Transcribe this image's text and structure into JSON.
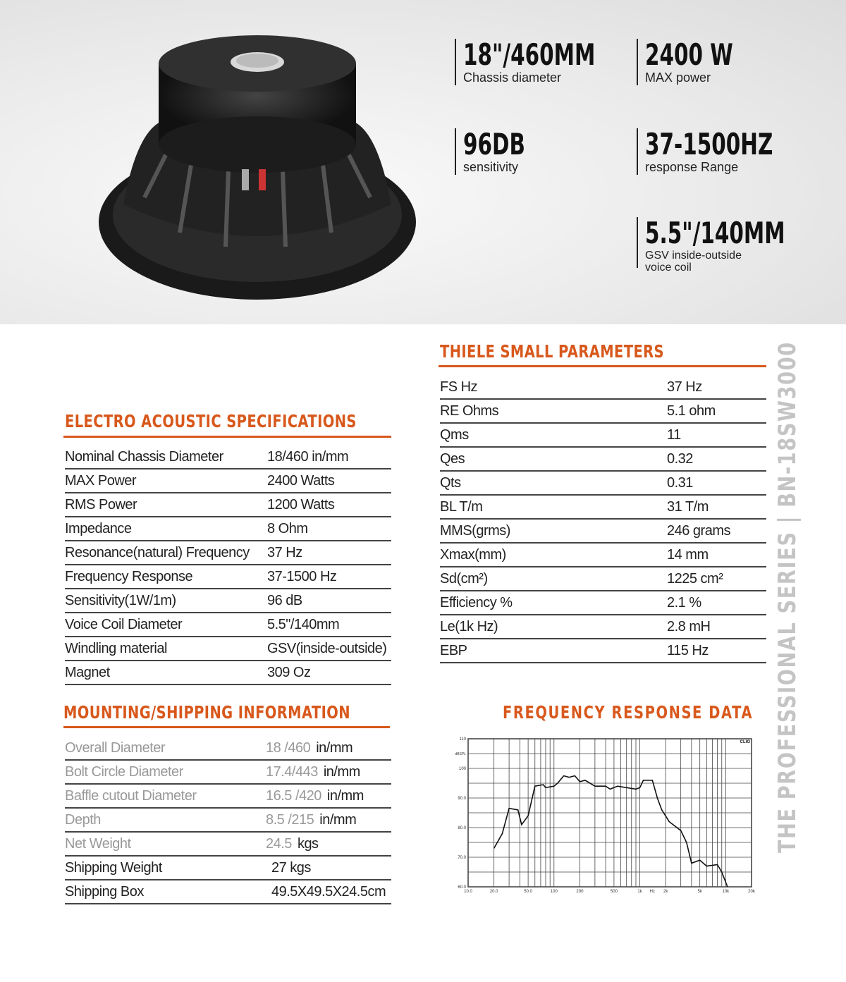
{
  "hero": {
    "stats": [
      {
        "value": "18\"/460MM",
        "label": "Chassis diameter"
      },
      {
        "value": "2400 W",
        "label": "MAX power"
      },
      {
        "value": "96DB",
        "label": "sensitivity"
      },
      {
        "value": "37-1500HZ",
        "label": "response Range"
      },
      {
        "value": "5.5\"/140MM",
        "label": "GSV inside-outside voice coil"
      }
    ]
  },
  "accent_color": "#d8581c",
  "electro": {
    "title": "ELECTRO ACOUSTIC SPECIFICATIONS",
    "rows": [
      [
        "Nominal Chassis Diameter",
        "18/460  in/mm"
      ],
      [
        "MAX Power",
        "2400 Watts"
      ],
      [
        "RMS Power",
        "1200  Watts"
      ],
      [
        "Impedance",
        "8 Ohm"
      ],
      [
        "Resonance(natural) Frequency",
        "37 Hz"
      ],
      [
        "Frequency Response",
        "37-1500 Hz"
      ],
      [
        "Sensitivity(1W/1m)",
        "96 dB"
      ],
      [
        "Voice Coil Diameter",
        "5.5\"/140mm"
      ],
      [
        "Windling material",
        "GSV(inside-outside)"
      ],
      [
        "Magnet",
        "309 Oz"
      ]
    ]
  },
  "mounting": {
    "title": "MOUNTING/SHIPPING INFORMATION",
    "rows": [
      [
        "Overall Diameter",
        "18 /460",
        "in/mm"
      ],
      [
        "Bolt Circle Diameter",
        "17.4/443",
        "in/mm"
      ],
      [
        "Baffle cutout Diameter",
        "16.5 /420",
        "in/mm"
      ],
      [
        "Depth",
        "8.5 /215",
        "in/mm"
      ],
      [
        "Net Weight",
        "24.5",
        "kgs"
      ],
      [
        "Shipping Weight",
        "",
        "27 kgs"
      ],
      [
        "Shipping Box",
        "",
        "49.5X49.5X24.5cm"
      ]
    ]
  },
  "thiele": {
    "title": "THIELE SMALL PARAMETERS",
    "rows": [
      [
        "FS Hz",
        "37 Hz"
      ],
      [
        "RE Ohms",
        "5.1 ohm"
      ],
      [
        "Qms",
        "11"
      ],
      [
        "Qes",
        "0.32"
      ],
      [
        "Qts",
        "0.31"
      ],
      [
        "BL T/m",
        "31 T/m"
      ],
      [
        "MMS(grms)",
        "246 grams"
      ],
      [
        "Xmax(mm)",
        "14 mm"
      ],
      [
        "Sd(cm²)",
        "1225 cm²"
      ],
      [
        "Efficiency %",
        "2.1 %"
      ],
      [
        "Le(1k Hz)",
        "2.8 mH"
      ],
      [
        "EBP",
        "115 Hz"
      ]
    ]
  },
  "vertical_text": "THE PROFESSIONAL SERIES | BN-18SW3000",
  "chart_data": {
    "type": "line",
    "title": "FREQUENCY RESPONSE DATA",
    "ylabel": "dBSPL",
    "xlabel": "Hz",
    "brand": "CLIO",
    "x_scale": "log",
    "xlim": [
      10,
      20000
    ],
    "ylim": [
      60,
      110
    ],
    "grid": true,
    "y_ticks": [
      "60.0",
      "70.0",
      "80.0",
      "90.0",
      "100",
      "110"
    ],
    "x_ticks": [
      [
        "10.0",
        10
      ],
      [
        "20.0",
        20
      ],
      [
        "50.0",
        50
      ],
      [
        "100",
        100
      ],
      [
        "200",
        200
      ],
      [
        "500",
        500
      ],
      [
        "1k",
        1000
      ],
      [
        "2k",
        2000
      ],
      [
        "5k",
        5000
      ],
      [
        "10k",
        10000
      ],
      [
        "20k",
        20000
      ]
    ],
    "series": [
      {
        "x": [
          20,
          25,
          30,
          38,
          42,
          50,
          60,
          75,
          80,
          100,
          110,
          130,
          150,
          175,
          200,
          230,
          300,
          400,
          450,
          550,
          700,
          900,
          1000,
          1100,
          1400,
          1600,
          1800,
          2200,
          3000,
          3500,
          4000,
          5000,
          6000,
          8000,
          9000,
          10500
        ],
        "y": [
          73,
          78,
          86.5,
          86,
          81,
          84,
          94,
          94.5,
          93.5,
          94,
          95,
          97.5,
          97,
          97.5,
          95.5,
          96,
          94,
          94,
          93,
          94,
          93.5,
          93,
          93.5,
          96,
          96,
          90,
          86,
          82,
          79,
          75,
          68,
          69,
          67,
          67.5,
          65,
          60
        ]
      }
    ]
  }
}
